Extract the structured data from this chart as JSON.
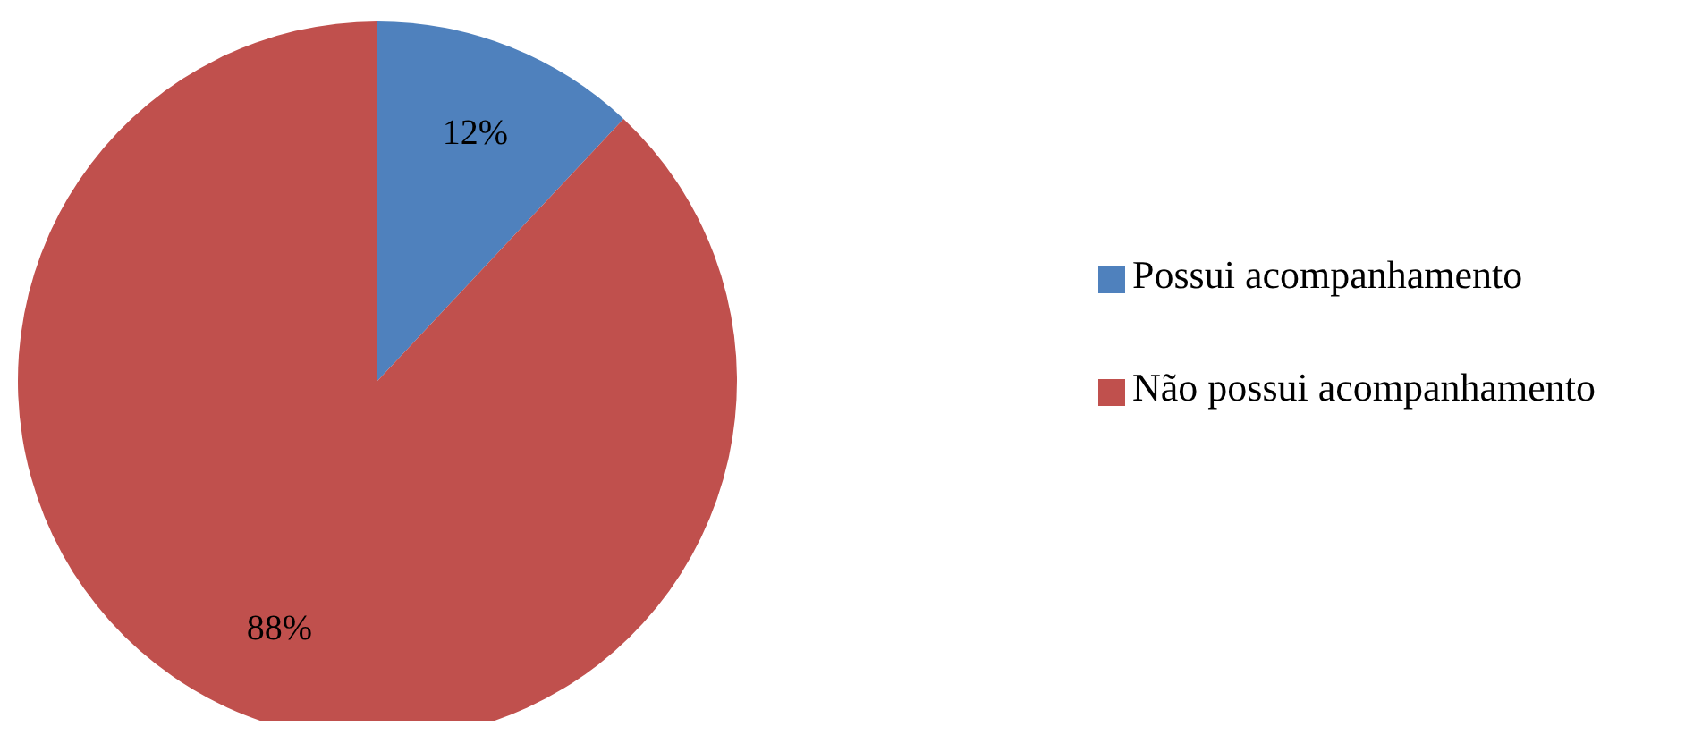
{
  "chart_data": {
    "type": "pie",
    "categories": [
      "Possui acompanhamento",
      "Não possui acompanhamento"
    ],
    "values": [
      12,
      88
    ],
    "colors": [
      "#4f81bd",
      "#c0504d"
    ],
    "value_labels": [
      "12%",
      "88%"
    ],
    "legend": "right"
  }
}
